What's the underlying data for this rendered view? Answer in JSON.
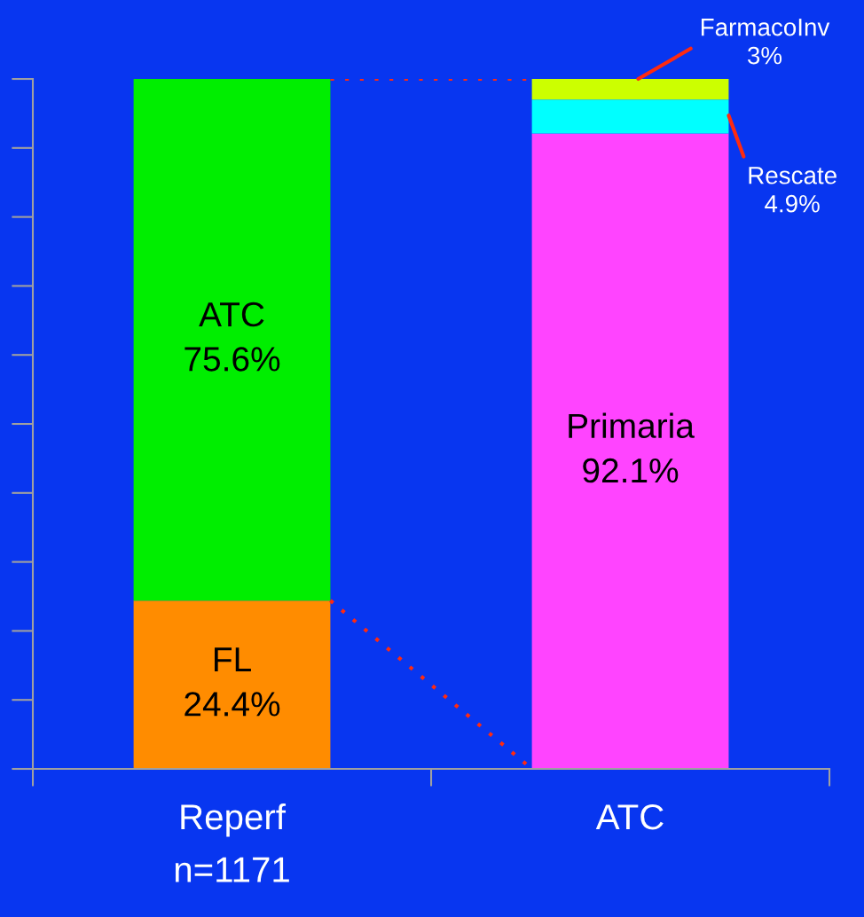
{
  "chart_data": {
    "type": "bar",
    "stacked": true,
    "categories": [
      "Reperf\nn=1171",
      "ATC"
    ],
    "series": [
      {
        "colors": [
          "#ff8c00",
          "#ff44ff"
        ],
        "values": [
          24.4,
          92.1
        ],
        "value_labels": [
          "FL\n24.4%",
          "Primaria\n92.1%"
        ]
      },
      {
        "colors": [
          "#00ee00",
          "#00ffff"
        ],
        "values": [
          75.6,
          4.9
        ],
        "value_labels": [
          "ATC\n75.6%",
          null
        ]
      },
      {
        "colors": [
          "#ccff00",
          "#ccff00"
        ],
        "values": [
          null,
          3
        ],
        "value_labels": [
          null,
          null
        ]
      }
    ],
    "tick_labels": "x",
    "annotations": [
      "FarmacoInv\n3%",
      "Rescate\n4.9%"
    ]
  }
}
